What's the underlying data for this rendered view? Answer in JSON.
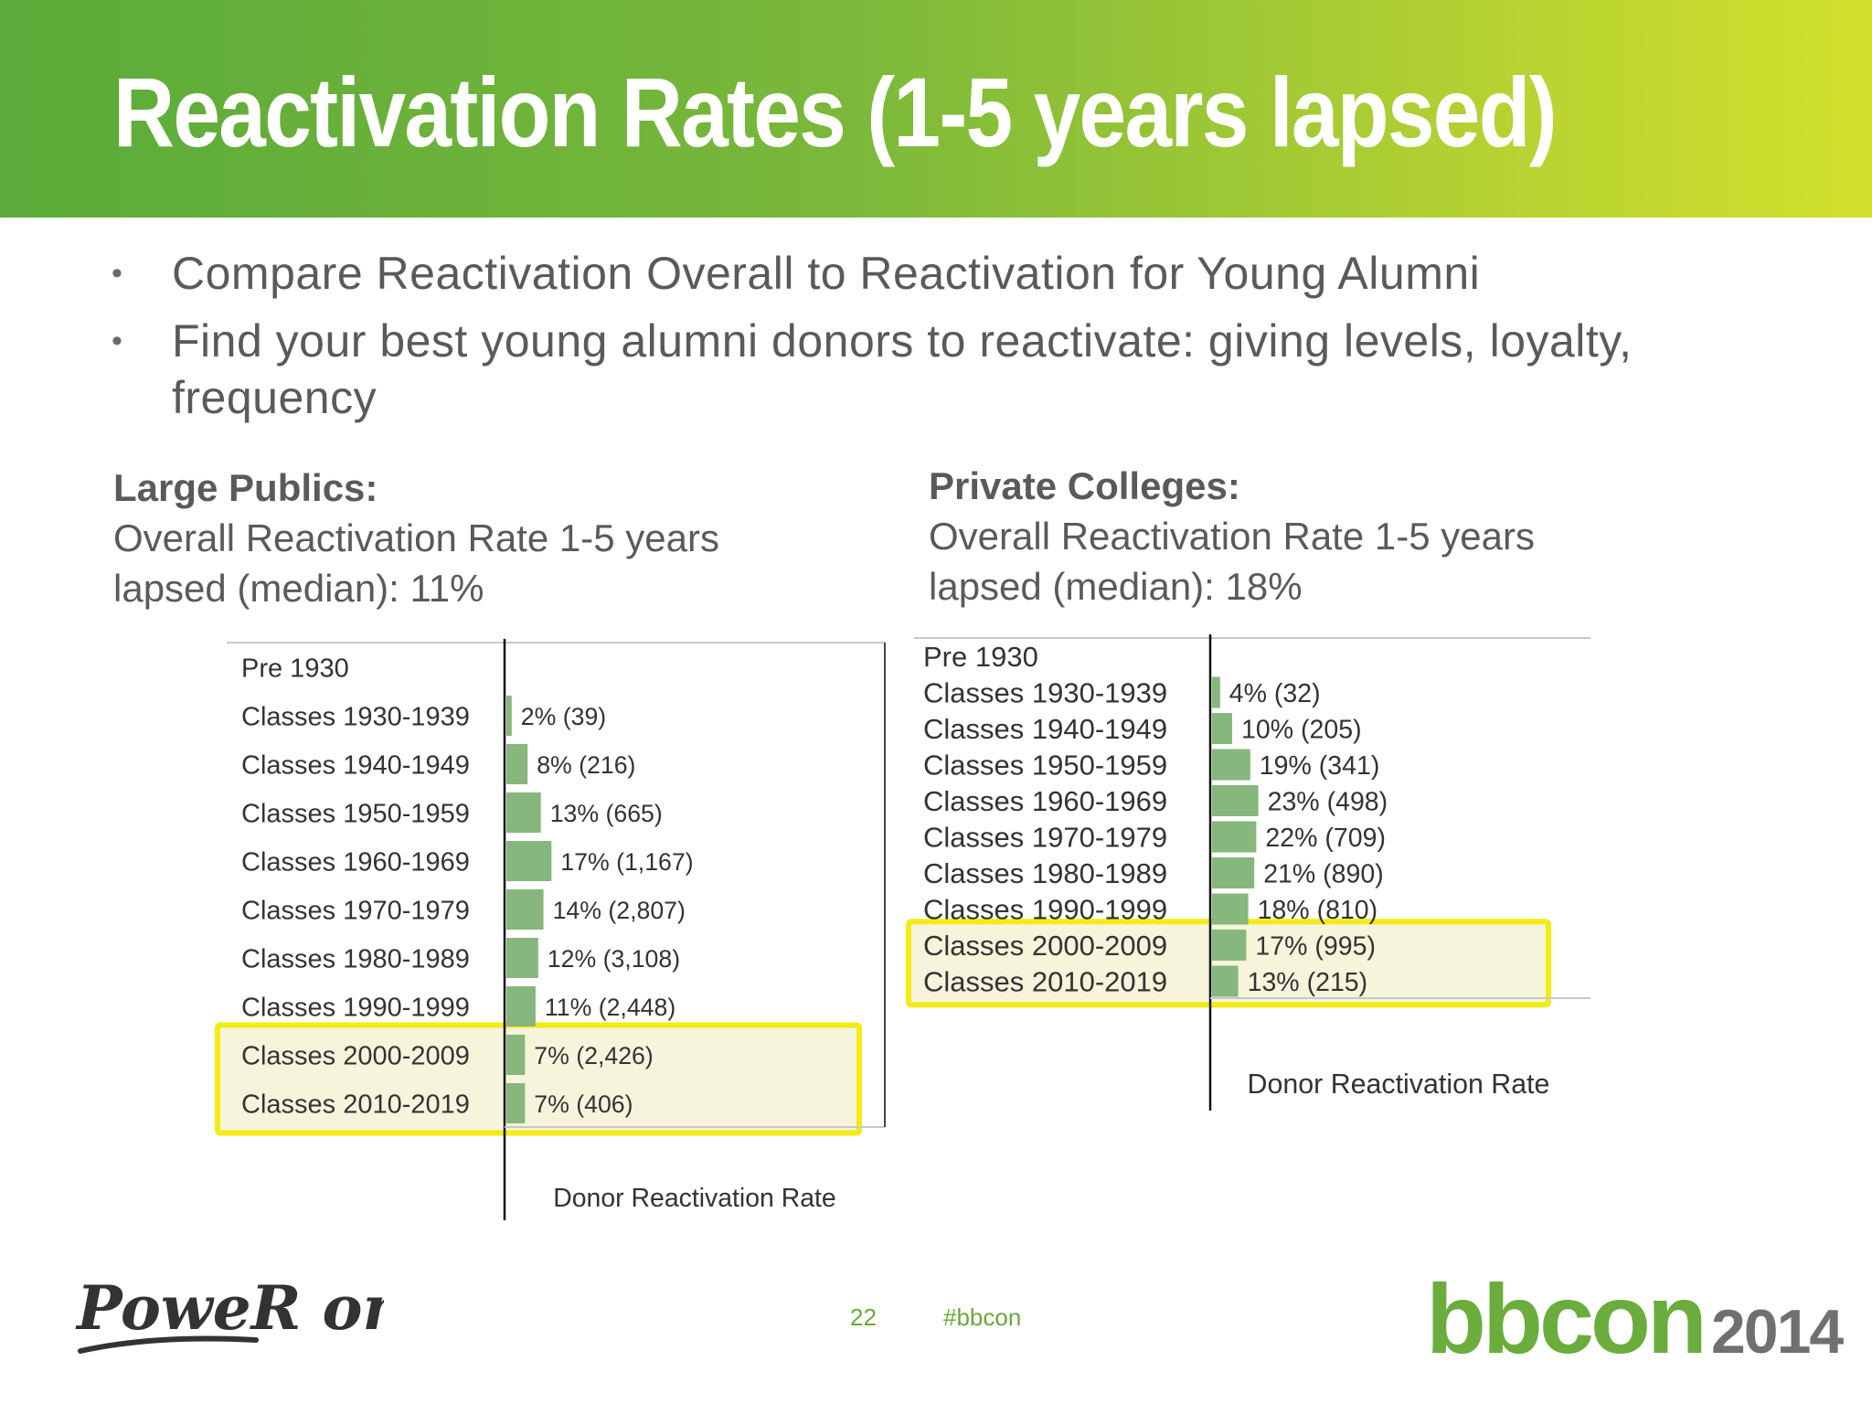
{
  "slide": {
    "title": "Reactivation Rates (1-5 years lapsed)",
    "bullets": [
      "Compare Reactivation Overall to Reactivation for Young Alumni",
      "Find your best young alumni donors to reactivate:  giving levels, loyalty, frequency"
    ],
    "page_number": "22",
    "hashtag": "#bbcon",
    "logo_left": "PoweR on!",
    "logo_right_word": "bbcon",
    "logo_right_year": "2014"
  },
  "panels": {
    "left": {
      "heading": "Large Publics:",
      "line1": "Overall Reactivation Rate 1-5 years",
      "line2": "lapsed (median):  11%"
    },
    "right": {
      "heading": "Private Colleges:",
      "line1": "Overall Reactivation Rate 1-5 years",
      "line2": "lapsed (median):  18%"
    }
  },
  "colors": {
    "bar": "#86b77c",
    "highlight_border": "#f2ec14",
    "highlight_fill": "#f6f5dc",
    "text": "#333333"
  },
  "chart_data": [
    {
      "type": "bar",
      "orientation": "horizontal",
      "title": "",
      "xlabel": "Donor Reactivation Rate",
      "categories": [
        "Pre 1930",
        "Classes 1930-1939",
        "Classes 1940-1949",
        "Classes 1950-1959",
        "Classes 1960-1969",
        "Classes 1970-1979",
        "Classes 1980-1989",
        "Classes 1990-1999",
        "Classes 2000-2009",
        "Classes 2010-2019"
      ],
      "values": [
        null,
        2,
        8,
        13,
        17,
        14,
        12,
        11,
        7,
        7
      ],
      "labels": [
        "",
        "2% (39)",
        "8% (216)",
        "13% (665)",
        "17% (1,167)",
        "14% (2,807)",
        "12% (3,108)",
        "11% (2,448)",
        "7% (2,426)",
        "7% (406)"
      ],
      "highlighted": [
        "Classes 2000-2009",
        "Classes 2010-2019"
      ]
    },
    {
      "type": "bar",
      "orientation": "horizontal",
      "title": "",
      "xlabel": "Donor Reactivation Rate",
      "categories": [
        "Pre 1930",
        "Classes 1930-1939",
        "Classes 1940-1949",
        "Classes 1950-1959",
        "Classes 1960-1969",
        "Classes 1970-1979",
        "Classes 1980-1989",
        "Classes 1990-1999",
        "Classes 2000-2009",
        "Classes 2010-2019"
      ],
      "values": [
        null,
        4,
        10,
        19,
        23,
        22,
        21,
        18,
        17,
        13
      ],
      "labels": [
        "",
        "4% (32)",
        "10% (205)",
        "19% (341)",
        "23% (498)",
        "22% (709)",
        "21% (890)",
        "18% (810)",
        "17% (995)",
        "13% (215)"
      ],
      "highlighted": [
        "Classes 2000-2009",
        "Classes 2010-2019"
      ]
    }
  ]
}
